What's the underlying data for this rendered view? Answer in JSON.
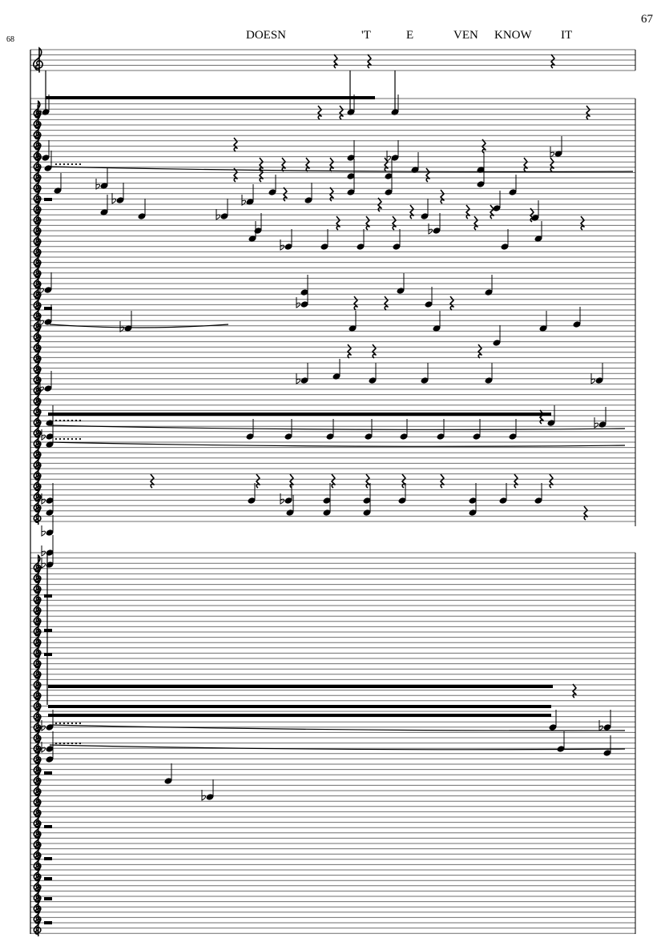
{
  "page": {
    "number": "67",
    "measure_number": "68"
  },
  "lyrics": [
    "DOESN",
    "'T",
    "E",
    "VEN",
    "KNOW",
    "IT"
  ],
  "colors": {
    "ink": "#000000",
    "staff_line": "#6e6e6e",
    "paper": "#ffffff"
  },
  "icons": {
    "clef": "treble-clef-icon",
    "rest": "quarter-rest-icon",
    "flat": "flat-icon"
  }
}
